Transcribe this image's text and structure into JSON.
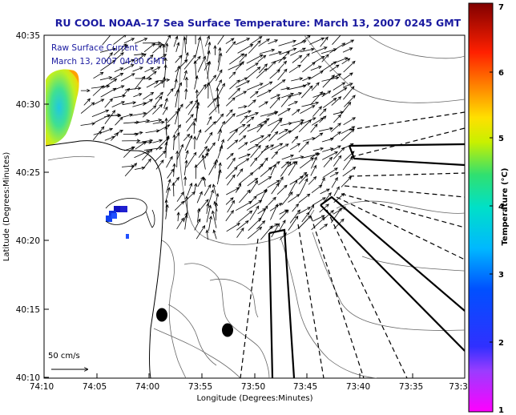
{
  "title": "RU COOL  NOAA–17  Sea Surface Temperature:  March 13, 2007 0245 GMT",
  "overlay": {
    "line1": "Raw Surface Current",
    "line2": "March 13, 2007 04:00 GMT"
  },
  "axes": {
    "xlabel": "Longitude (Degrees:Minutes)",
    "ylabel": "Latitude (Degrees:Minutes)",
    "xticks": [
      "74:10",
      "74:05",
      "74:00",
      "73:55",
      "73:50",
      "73:45",
      "73:40",
      "73:35",
      "73:3"
    ],
    "yticks": [
      "40:35",
      "40:30",
      "40:25",
      "40:20",
      "40:15",
      "40:10"
    ]
  },
  "scale_label": "50 cm/s",
  "colorbar": {
    "label": "Temperature (°C)",
    "ticks": [
      "7",
      "6",
      "5",
      "4",
      "3",
      "2",
      "1"
    ],
    "range": [
      1,
      7
    ]
  },
  "colors": {
    "title": "#1a1aa0",
    "overlay_text": "#1a1aa0"
  }
}
